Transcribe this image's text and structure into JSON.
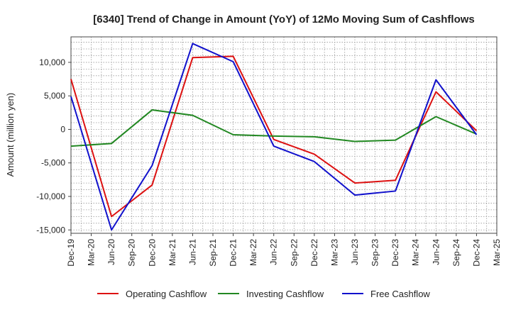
{
  "chart_data": {
    "type": "line",
    "title": "[6340]  Trend of Change in Amount (YoY) of 12Mo Moving Sum of Cashflows",
    "xlabel": "",
    "ylabel": "Amount (million yen)",
    "ylim": [
      -15500,
      13800
    ],
    "yticks": [
      10000,
      5000,
      0,
      -5000,
      -10000,
      -15000
    ],
    "ytick_labels": [
      "10,000",
      "5,000",
      "0",
      "-5,000",
      "-10,000",
      "-15,000"
    ],
    "x_labels": [
      "Dec-19",
      "Mar-20",
      "Jun-20",
      "Sep-20",
      "Dec-20",
      "Mar-21",
      "Jun-21",
      "Sep-21",
      "Dec-21",
      "Mar-22",
      "Jun-22",
      "Sep-22",
      "Dec-22",
      "Mar-23",
      "Jun-23",
      "Sep-23",
      "Dec-23",
      "Mar-24",
      "Jun-24",
      "Sep-24",
      "Dec-24",
      "Mar-25"
    ],
    "grid": true,
    "legend_position": "bottom",
    "series": [
      {
        "name": "Operating Cashflow",
        "color": "#dd1111",
        "points": [
          [
            0,
            7500
          ],
          [
            2,
            -13000
          ],
          [
            4,
            -8300
          ],
          [
            6,
            10700
          ],
          [
            8,
            10900
          ],
          [
            10,
            -1500
          ],
          [
            12,
            -3700
          ],
          [
            14,
            -8000
          ],
          [
            16,
            -7600
          ],
          [
            18,
            5600
          ],
          [
            20,
            -200
          ]
        ]
      },
      {
        "name": "Investing Cashflow",
        "color": "#228822",
        "points": [
          [
            0,
            -2500
          ],
          [
            2,
            -2100
          ],
          [
            4,
            2900
          ],
          [
            6,
            2100
          ],
          [
            8,
            -800
          ],
          [
            10,
            -1000
          ],
          [
            12,
            -1100
          ],
          [
            14,
            -1800
          ],
          [
            16,
            -1600
          ],
          [
            18,
            1900
          ],
          [
            20,
            -700
          ]
        ]
      },
      {
        "name": "Free Cashflow",
        "color": "#1111cc",
        "points": [
          [
            0,
            4900
          ],
          [
            2,
            -15000
          ],
          [
            4,
            -5400
          ],
          [
            6,
            12800
          ],
          [
            8,
            10100
          ],
          [
            10,
            -2500
          ],
          [
            12,
            -4800
          ],
          [
            14,
            -9800
          ],
          [
            16,
            -9200
          ],
          [
            18,
            7400
          ],
          [
            20,
            -800
          ]
        ]
      }
    ]
  }
}
